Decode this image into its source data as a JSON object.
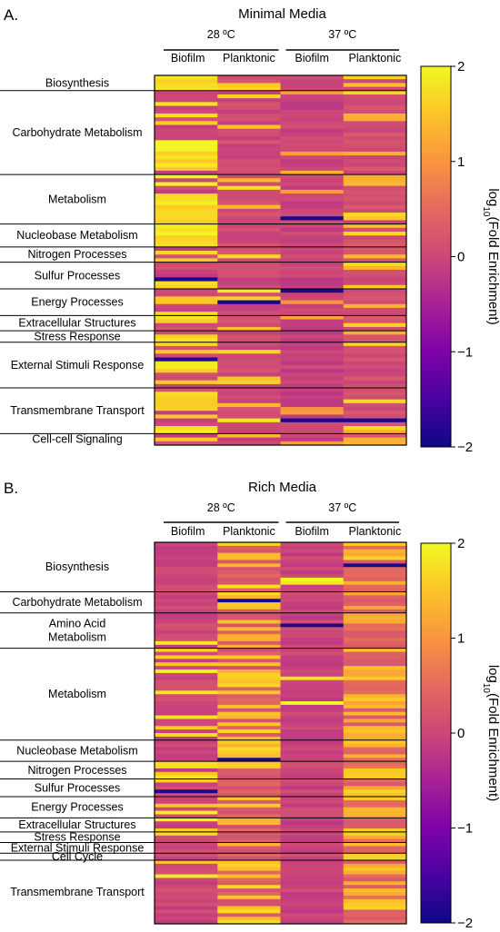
{
  "chart_data": [
    {
      "type": "heatmap",
      "panel": "A.",
      "title": "Minimal Media",
      "temperatures": [
        "28 ºC",
        "37 ºC"
      ],
      "columns": [
        "Biofilm",
        "Planktonic",
        "Biofilm",
        "Planktonic"
      ],
      "categories": [
        {
          "label": [
            "Biosynthesis"
          ],
          "rows": 4
        },
        {
          "label": [
            "Carbohydrate Metabolism"
          ],
          "rows": 22
        },
        {
          "label": [
            "Metabolism"
          ],
          "rows": 13
        },
        {
          "label": [
            "Nucleobase Metabolism"
          ],
          "rows": 6
        },
        {
          "label": [
            "Nitrogen Processes"
          ],
          "rows": 4
        },
        {
          "label": [
            "Sulfur Processes"
          ],
          "rows": 7
        },
        {
          "label": [
            "Energy Processes"
          ],
          "rows": 7
        },
        {
          "label": [
            "Extracellular Structures"
          ],
          "rows": 4
        },
        {
          "label": [
            "Stress Response"
          ],
          "rows": 3
        },
        {
          "label": [
            "External Stimuli Response"
          ],
          "rows": 12
        },
        {
          "label": [
            "Transmembrane Transport"
          ],
          "rows": 12
        },
        {
          "label": [
            "Cell-cell Signaling"
          ],
          "rows": 3
        }
      ],
      "value_range": [
        -2,
        2
      ],
      "colorbar_ticks": [
        "2",
        "1",
        "0",
        "−1",
        "−2"
      ],
      "colorbar_label": "log10(Fold Enrichment)"
    },
    {
      "type": "heatmap",
      "panel": "B.",
      "title": "Rich Media",
      "temperatures": [
        "28 ºC",
        "37 ºC"
      ],
      "columns": [
        "Biofilm",
        "Planktonic",
        "Biofilm",
        "Planktonic"
      ],
      "categories": [
        {
          "label": [
            "Biosynthesis"
          ],
          "rows": 14
        },
        {
          "label": [
            "Carbohydrate Metabolism"
          ],
          "rows": 6
        },
        {
          "label": [
            "Amino Acid",
            "Metabolism"
          ],
          "rows": 10
        },
        {
          "label": [
            "Metabolism"
          ],
          "rows": 26
        },
        {
          "label": [
            "Nucleobase Metabolism"
          ],
          "rows": 6
        },
        {
          "label": [
            "Nitrogen Processes"
          ],
          "rows": 5
        },
        {
          "label": [
            "Sulfur Processes"
          ],
          "rows": 5
        },
        {
          "label": [
            "Energy Processes"
          ],
          "rows": 6
        },
        {
          "label": [
            "Extracellular Structures"
          ],
          "rows": 4
        },
        {
          "label": [
            "Stress Response"
          ],
          "rows": 3
        },
        {
          "label": [
            "External Stimuli Response"
          ],
          "rows": 3
        },
        {
          "label": [
            "Cell Cycle"
          ],
          "rows": 2
        },
        {
          "label": [
            "Transmembrane Transport"
          ],
          "rows": 18
        }
      ],
      "value_range": [
        -2,
        2
      ],
      "colorbar_ticks": [
        "2",
        "1",
        "0",
        "−1",
        "−2"
      ],
      "colorbar_label": "log10(Fold Enrichment)"
    }
  ]
}
